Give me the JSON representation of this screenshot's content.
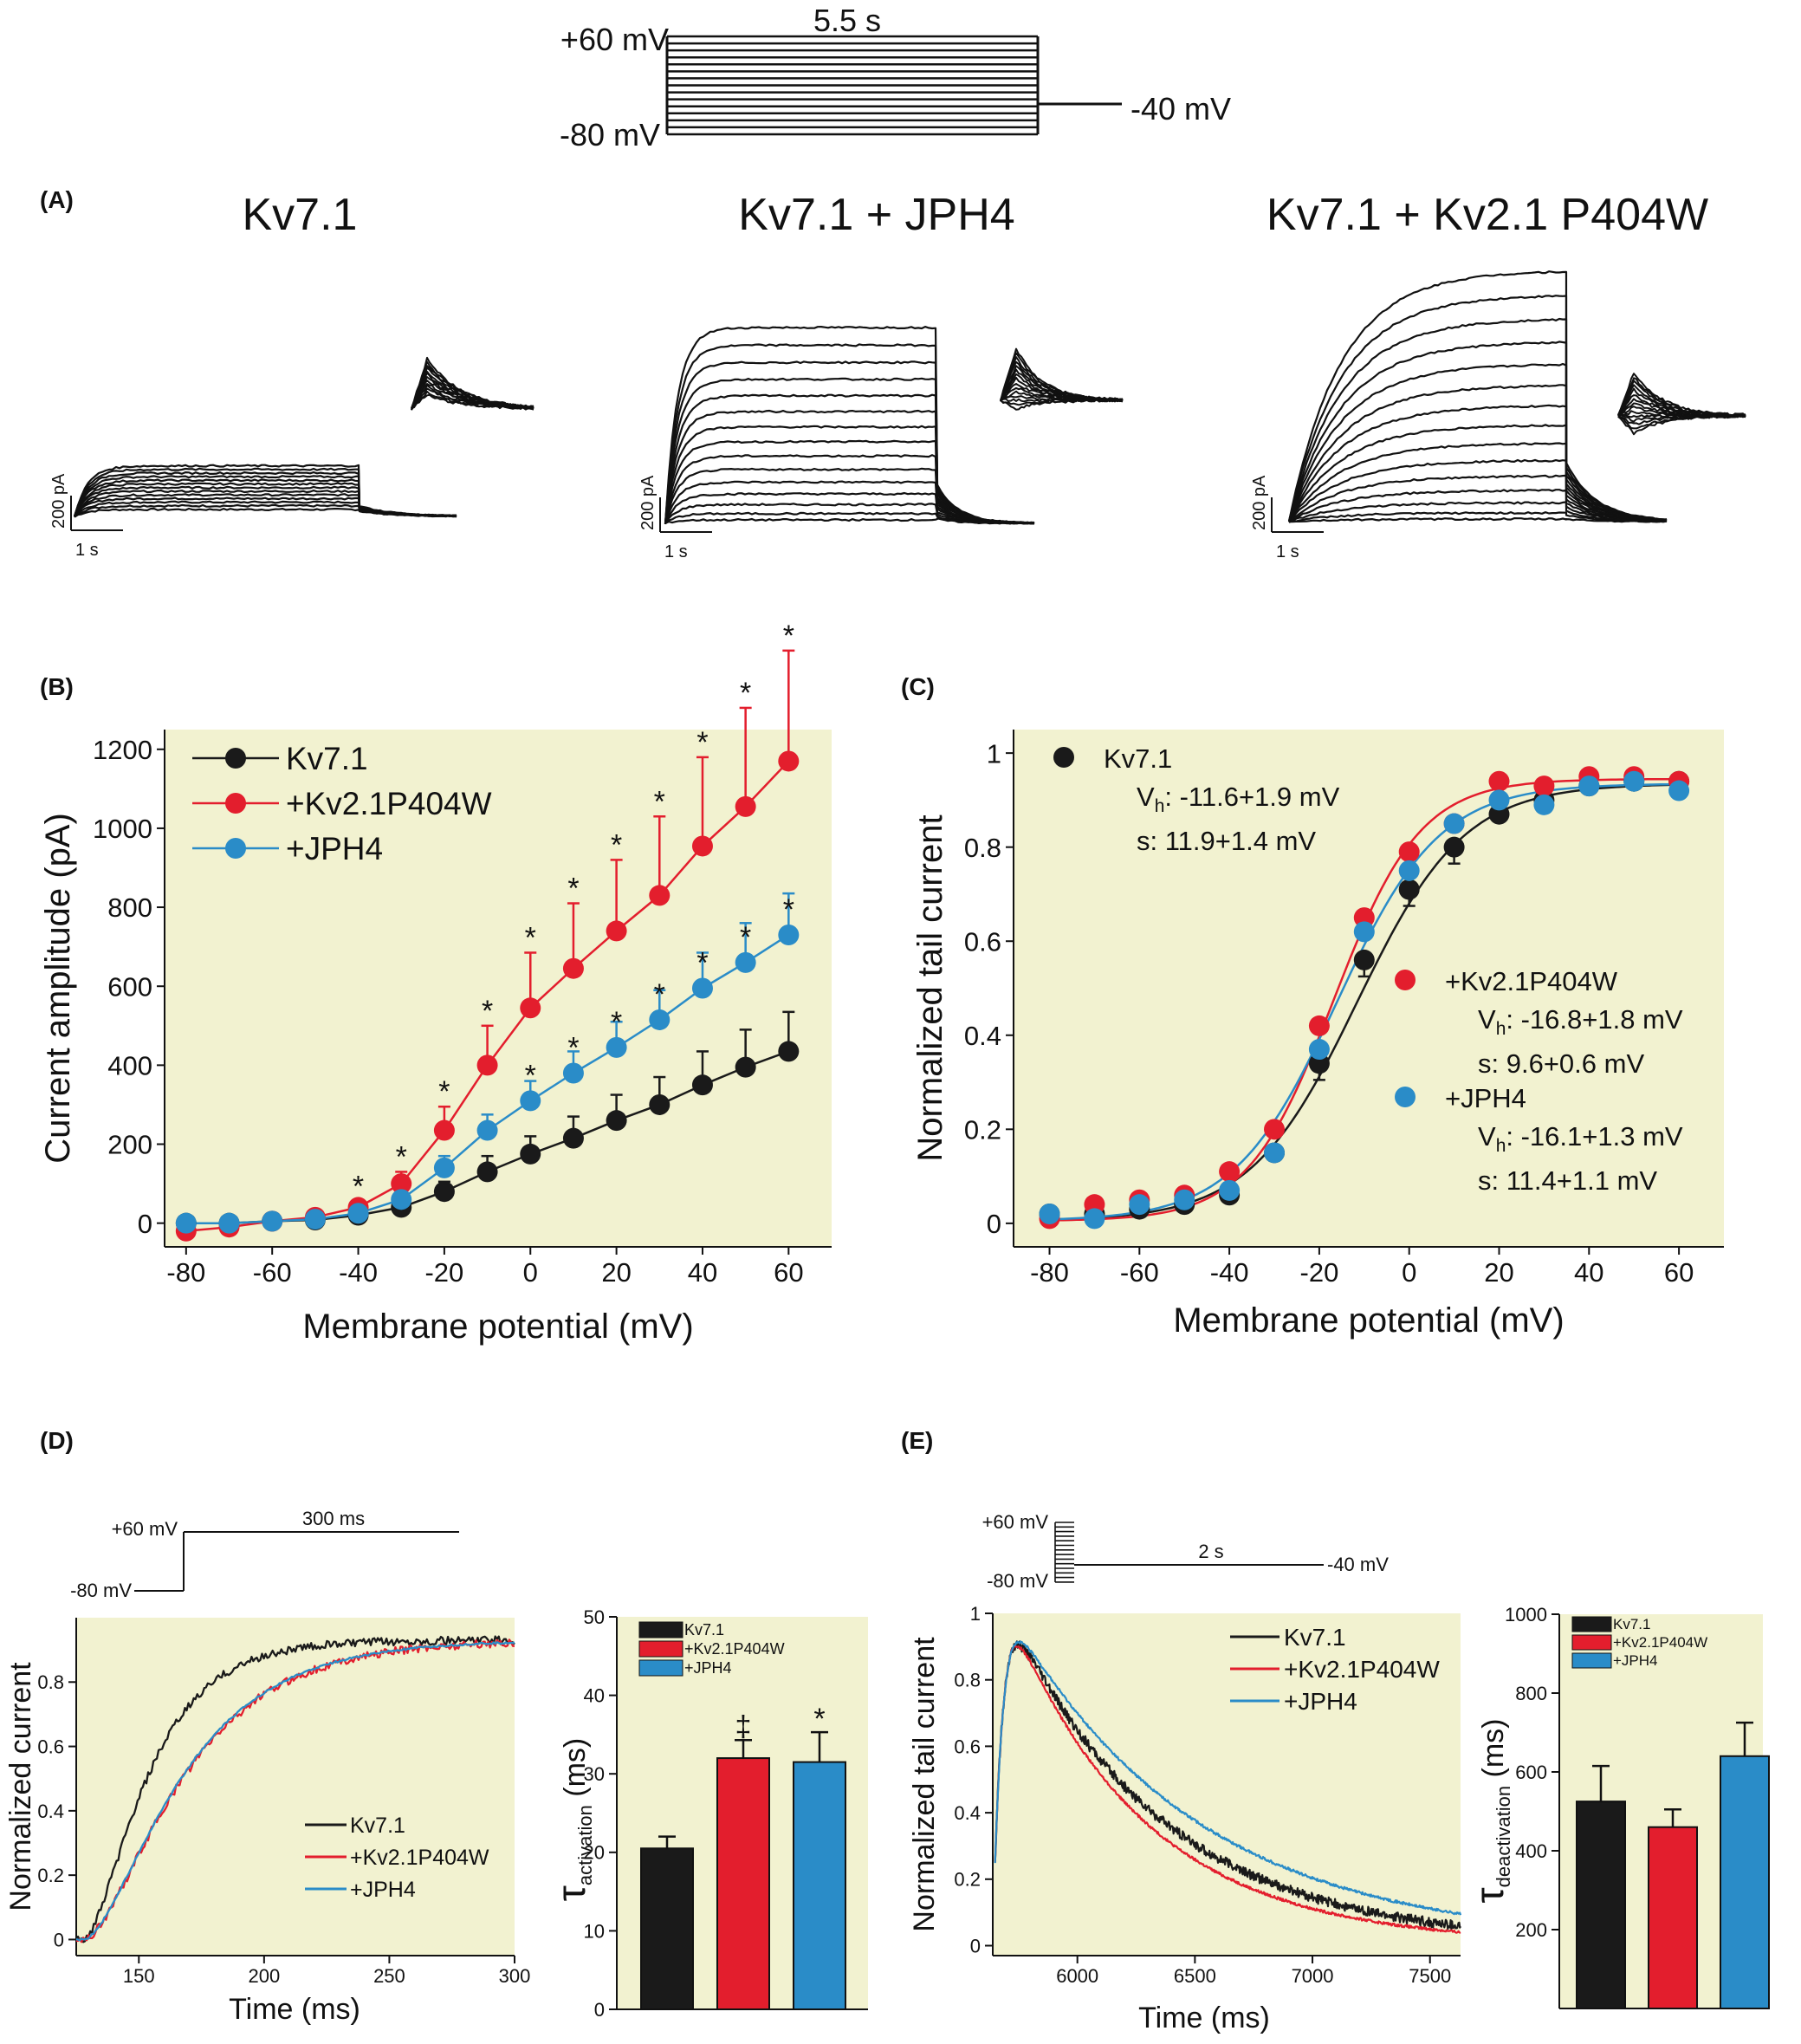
{
  "protocol_top": {
    "v_high": "+60 mV",
    "v_low": "-80 mV",
    "v_tail": "-40 mV",
    "duration": "5.5 s"
  },
  "panel_labels": {
    "A": "(A)",
    "B": "(B)",
    "C": "(C)",
    "D": "(D)",
    "E": "(E)"
  },
  "traces": {
    "titles": [
      "Kv7.1",
      "Kv7.1 + JPH4",
      "Kv7.1 + Kv2.1 P404W"
    ],
    "scale_current": "200 pA",
    "scale_time": "1 s"
  },
  "colors": {
    "kv71": "#1a1a1a",
    "p404w": "#e31e2d",
    "jph4": "#2a8cc8",
    "panel_bg": "#f2f2d0"
  },
  "chart_data": [
    {
      "id": "B",
      "type": "line",
      "xlabel": "Membrane potential (mV)",
      "ylabel": "Current amplitude (pA)",
      "xlim": [
        -85,
        70
      ],
      "ylim": [
        -60,
        1250
      ],
      "xticks": [
        "-80",
        "-60",
        "-40",
        "-20",
        "0",
        "20",
        "40",
        "60"
      ],
      "yticks": [
        "0",
        "200",
        "400",
        "600",
        "800",
        "1000",
        "1200"
      ],
      "legend_position": "top-left",
      "x": [
        -80,
        -70,
        -60,
        -50,
        -40,
        -30,
        -20,
        -10,
        0,
        10,
        20,
        30,
        40,
        50,
        60
      ],
      "series": [
        {
          "name": "Kv7.1",
          "color": "#1a1a1a",
          "values": [
            0,
            0,
            5,
            8,
            20,
            40,
            80,
            130,
            175,
            215,
            260,
            300,
            350,
            395,
            435
          ],
          "errors": [
            5,
            5,
            5,
            8,
            15,
            20,
            25,
            40,
            45,
            55,
            65,
            70,
            85,
            95,
            100
          ]
        },
        {
          "name": "+Kv2.1P404W",
          "color": "#e31e2d",
          "values": [
            -20,
            -10,
            5,
            15,
            40,
            100,
            235,
            400,
            545,
            645,
            740,
            830,
            955,
            1055,
            1170
          ],
          "errors": [
            5,
            5,
            5,
            10,
            15,
            30,
            60,
            100,
            140,
            165,
            180,
            200,
            225,
            250,
            280
          ]
        },
        {
          "name": "+JPH4",
          "color": "#2a8cc8",
          "values": [
            0,
            0,
            5,
            10,
            25,
            60,
            140,
            235,
            310,
            380,
            445,
            515,
            595,
            660,
            730
          ],
          "errors": [
            5,
            5,
            5,
            8,
            12,
            20,
            30,
            40,
            50,
            55,
            65,
            75,
            90,
            100,
            105
          ]
        }
      ],
      "significance": {
        "marker": "*",
        "p404w_x": [
          -40,
          -30,
          -20,
          -10,
          0,
          10,
          20,
          30,
          40,
          50,
          60
        ],
        "jph4_x": [
          0,
          10,
          20,
          30,
          40,
          50,
          60
        ]
      }
    },
    {
      "id": "C",
      "type": "line",
      "xlabel": "Membrane potential (mV)",
      "ylabel": "Normalized tail current",
      "xlim": [
        -88,
        70
      ],
      "ylim": [
        -0.05,
        1.05
      ],
      "xticks": [
        "-80",
        "-60",
        "-40",
        "-20",
        "0",
        "20",
        "40",
        "60"
      ],
      "yticks": [
        "0",
        "0.2",
        "0.4",
        "0.6",
        "0.8",
        "1"
      ],
      "x": [
        -80,
        -70,
        -60,
        -50,
        -40,
        -30,
        -20,
        -10,
        0,
        10,
        20,
        30,
        40,
        50,
        60
      ],
      "series": [
        {
          "name": "Kv7.1",
          "color": "#1a1a1a",
          "values": [
            0.02,
            0.02,
            0.03,
            0.04,
            0.06,
            0.15,
            0.34,
            0.56,
            0.71,
            0.8,
            0.87,
            0.9,
            0.93,
            0.94,
            0.94
          ],
          "vh": -11.6,
          "s": 11.9,
          "fit_max": 0.93,
          "annot": [
            "Kv7.1",
            "-11.6+1.9 mV",
            "s: 11.9+1.4 mV"
          ]
        },
        {
          "name": "+Kv2.1P404W",
          "color": "#e31e2d",
          "values": [
            0.01,
            0.04,
            0.05,
            0.06,
            0.11,
            0.2,
            0.42,
            0.65,
            0.79,
            0.85,
            0.94,
            0.93,
            0.95,
            0.95,
            0.94
          ],
          "vh": -16.8,
          "s": 9.6,
          "fit_max": 0.94,
          "annot": [
            "+Kv2.1P404W",
            "-16.8+1.8 mV",
            "s: 9.6+0.6 mV"
          ]
        },
        {
          "name": "+JPH4",
          "color": "#2a8cc8",
          "values": [
            0.02,
            0.01,
            0.04,
            0.05,
            0.07,
            0.15,
            0.37,
            0.62,
            0.75,
            0.85,
            0.9,
            0.89,
            0.93,
            0.94,
            0.92
          ],
          "vh": -16.1,
          "s": 11.4,
          "fit_max": 0.93,
          "annot": [
            "+JPH4",
            "-16.1+1.3 mV",
            "s: 11.4+1.1 mV"
          ]
        }
      ],
      "vh_prefix": "V",
      "vh_sub": "h",
      "vh_colon": ": "
    },
    {
      "id": "D-trace",
      "type": "line",
      "xlabel": "Time (ms)",
      "ylabel": "Normalized current",
      "xlim": [
        125,
        300
      ],
      "ylim": [
        -0.05,
        1.0
      ],
      "xticks": [
        "150",
        "200",
        "250",
        "300"
      ],
      "yticks": [
        "0",
        "0.2",
        "0.4",
        "0.6",
        "0.8"
      ],
      "series": [
        {
          "name": "Kv7.1",
          "color": "#1a1a1a",
          "tau": 20.5
        },
        {
          "name": "+Kv2.1P404W",
          "color": "#e31e2d",
          "tau": 32
        },
        {
          "name": "+JPH4",
          "color": "#2a8cc8",
          "tau": 31.5
        }
      ],
      "protocol": {
        "v_high": "+60 mV",
        "v_low": "-80 mV",
        "duration": "300 ms"
      }
    },
    {
      "id": "D-bar",
      "type": "bar",
      "ylabel_symbol": "τ",
      "ylabel_sub": "activation",
      "ylabel_unit": "(ms)",
      "ylim": [
        0,
        50
      ],
      "yticks": [
        "0",
        "10",
        "20",
        "30",
        "40",
        "50"
      ],
      "categories": [
        "Kv7.1",
        "+Kv2.1P404W",
        "+JPH4"
      ],
      "values": [
        20.5,
        32,
        31.5
      ],
      "errors": [
        1.5,
        2.3,
        3.8
      ],
      "colors": [
        "#1a1a1a",
        "#e31e2d",
        "#2a8cc8"
      ],
      "marks": [
        "",
        "‡",
        "*"
      ]
    },
    {
      "id": "E-trace",
      "type": "line",
      "xlabel": "Time (ms)",
      "ylabel": "Normalized tail current",
      "xlim": [
        5640,
        7630
      ],
      "ylim": [
        -0.03,
        1.0
      ],
      "xticks": [
        "6000",
        "6500",
        "7000",
        "7500"
      ],
      "yticks": [
        "0",
        "0.2",
        "0.4",
        "0.6",
        "0.8",
        "1"
      ],
      "series": [
        {
          "name": "Kv7.1",
          "color": "#1a1a1a",
          "tau": 525
        },
        {
          "name": "+Kv2.1P404W",
          "color": "#e31e2d",
          "tau": 460
        },
        {
          "name": "+JPH4",
          "color": "#2a8cc8",
          "tau": 640
        }
      ],
      "protocol": {
        "v_high": "+60 mV",
        "v_low": "-80 mV",
        "v_tail": "-40 mV",
        "duration": "2 s"
      }
    },
    {
      "id": "E-bar",
      "type": "bar",
      "ylabel_symbol": "τ",
      "ylabel_sub": "deactivation",
      "ylabel_unit": "(ms)",
      "ylim": [
        0,
        1000
      ],
      "yticks": [
        "200",
        "400",
        "600",
        "800",
        "1000"
      ],
      "categories": [
        "Kv7.1",
        "+Kv2.1P404W",
        "+JPH4"
      ],
      "values": [
        525,
        460,
        640
      ],
      "errors": [
        90,
        45,
        85
      ],
      "colors": [
        "#1a1a1a",
        "#e31e2d",
        "#2a8cc8"
      ]
    }
  ]
}
